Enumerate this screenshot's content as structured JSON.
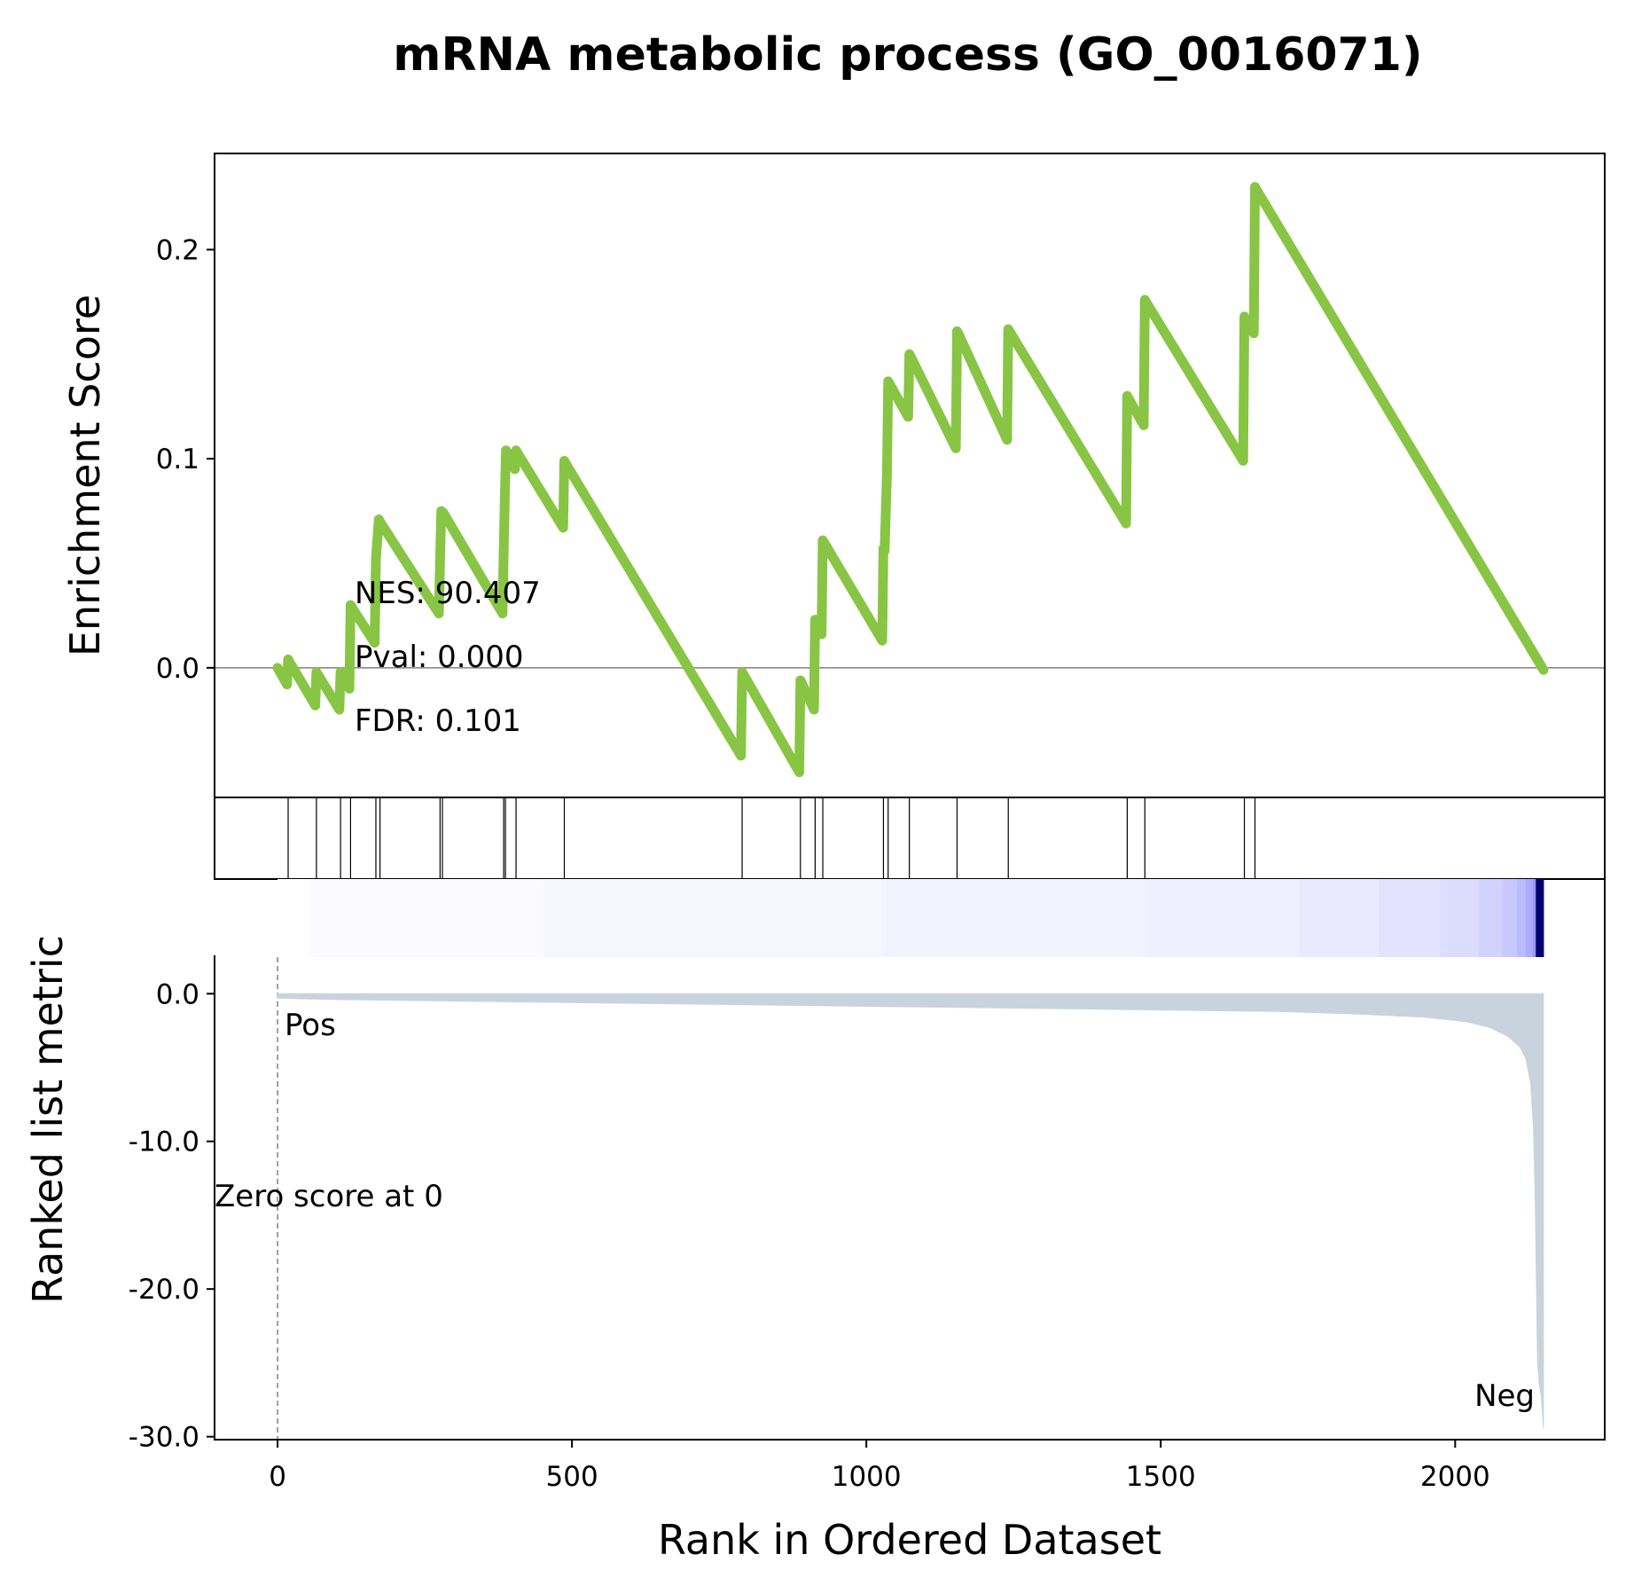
{
  "chart_data": {
    "type": "line",
    "title": "mRNA metabolic process (GO_0016071)",
    "xlabel": "Rank in Ordered Dataset",
    "ylabel_top": "Enrichment Score",
    "ylabel_bottom": "Ranked list metric",
    "xlim": [
      -107,
      2254
    ],
    "x_ticks": [
      0,
      500,
      1000,
      1500,
      2000
    ],
    "es_ylim": [
      -0.062,
      0.246
    ],
    "es_ticks": [
      0.0,
      0.1,
      0.2
    ],
    "es_tick_labels": [
      "0.0",
      "0.1",
      "0.2"
    ],
    "metric_ylim": [
      -30.2,
      2.6
    ],
    "metric_ticks": [
      0,
      -10,
      -20,
      -30
    ],
    "metric_tick_labels": [
      "0.0",
      "-10.0",
      "-20.0",
      "-30.0"
    ],
    "line_color": "#88c544",
    "metric_fill_color": "#c9d3dd",
    "annotations": {
      "nes": "NES: 90.407",
      "pval": "Pval: 0.000",
      "fdr": "FDR: 0.101",
      "pos": "Pos",
      "neg": "Neg",
      "zero_score": "Zero score at 0"
    },
    "annotation_colors": {
      "pos": "#ff0000",
      "neg": "#0000ff"
    },
    "hits": [
      18,
      66,
      107,
      124,
      167,
      174,
      276,
      280,
      384,
      387,
      405,
      487,
      789,
      888,
      913,
      926,
      1029,
      1037,
      1073,
      1154,
      1241,
      1443,
      1473,
      1642,
      1660
    ],
    "running_es": {
      "x": [
        0,
        16,
        18,
        20,
        64,
        66,
        68,
        105,
        107,
        109,
        122,
        124,
        126,
        165,
        167,
        172,
        174,
        176,
        274,
        276,
        278,
        282,
        382,
        384,
        386,
        388,
        403,
        405,
        407,
        485,
        487,
        489,
        787,
        789,
        791,
        886,
        888,
        890,
        911,
        913,
        915,
        924,
        926,
        928,
        1027,
        1029,
        1031,
        1035,
        1037,
        1039,
        1071,
        1073,
        1075,
        1152,
        1154,
        1156,
        1239,
        1241,
        1243,
        1441,
        1443,
        1445,
        1471,
        1473,
        1475,
        1640,
        1642,
        1644,
        1658,
        1660,
        1662,
        2150
      ],
      "y": [
        0.0,
        -0.008,
        0.004,
        0.003,
        -0.018,
        -0.002,
        -0.003,
        -0.02,
        -0.002,
        -0.003,
        -0.01,
        0.03,
        0.029,
        0.012,
        0.052,
        0.071,
        0.07,
        0.069,
        0.026,
        0.052,
        0.075,
        0.074,
        0.026,
        0.055,
        0.082,
        0.104,
        0.095,
        0.104,
        0.103,
        0.067,
        0.099,
        0.098,
        -0.042,
        -0.002,
        -0.003,
        -0.05,
        -0.006,
        -0.007,
        -0.02,
        0.023,
        0.022,
        0.016,
        0.061,
        0.06,
        0.013,
        0.057,
        0.056,
        0.093,
        0.137,
        0.136,
        0.12,
        0.15,
        0.149,
        0.105,
        0.161,
        0.16,
        0.109,
        0.162,
        0.161,
        0.069,
        0.13,
        0.129,
        0.116,
        0.176,
        0.175,
        0.099,
        0.168,
        0.167,
        0.16,
        0.23,
        0.229,
        -0.001
      ]
    },
    "ranked_metric": {
      "x": [
        0,
        100,
        300,
        500,
        700,
        900,
        1100,
        1300,
        1500,
        1700,
        1850,
        1950,
        2020,
        2060,
        2090,
        2110,
        2120,
        2128,
        2133,
        2136,
        2138,
        2140,
        2143,
        2146,
        2150
      ],
      "y": [
        -0.3,
        -0.4,
        -0.5,
        -0.6,
        -0.7,
        -0.8,
        -0.9,
        -1.0,
        -1.1,
        -1.2,
        -1.4,
        -1.6,
        -1.9,
        -2.3,
        -2.9,
        -3.6,
        -4.4,
        -6.0,
        -9.0,
        -14.0,
        -20.0,
        -25.0,
        -26.5,
        -27.2,
        -29.4
      ]
    }
  }
}
